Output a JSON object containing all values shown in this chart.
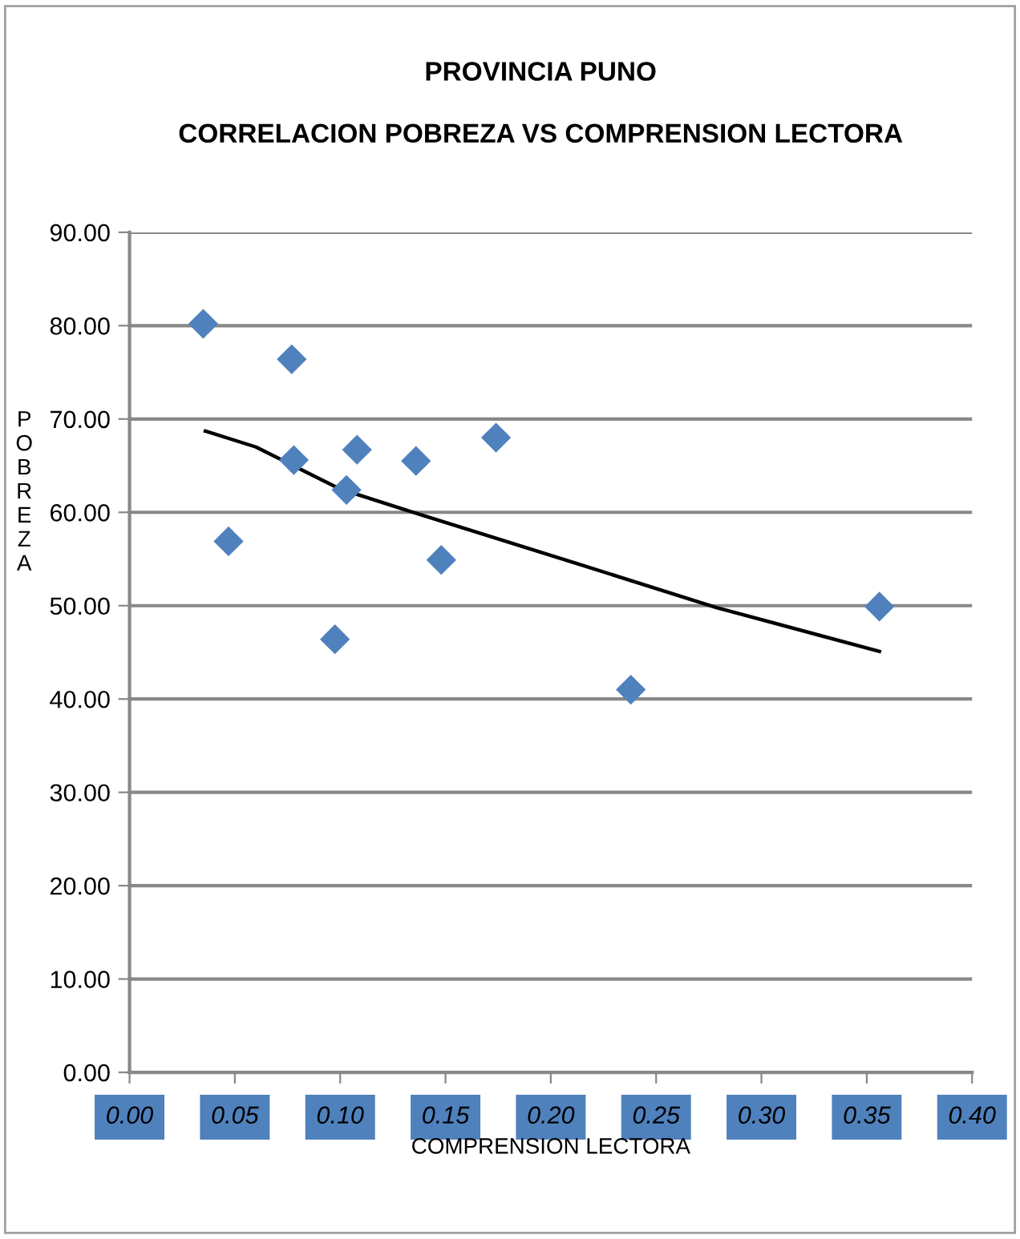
{
  "chart_data": {
    "type": "scatter",
    "title": "PROVINCIA PUNO",
    "subtitle": "CORRELACION POBREZA VS COMPRENSION LECTORA",
    "xlabel": "COMPRENSION LECTORA",
    "ylabel": "POBREZA",
    "xlim": [
      0,
      0.4
    ],
    "xticks": [
      {
        "value": 0,
        "label": "0.00"
      },
      {
        "value": 0.05,
        "label": "0.05"
      },
      {
        "value": 0.1,
        "label": "0.10"
      },
      {
        "value": 0.15,
        "label": "0.15"
      },
      {
        "value": 0.2,
        "label": "0.20"
      },
      {
        "value": 0.25,
        "label": "0.25"
      },
      {
        "value": 0.3,
        "label": "0.30"
      },
      {
        "value": 0.35,
        "label": "0.35"
      },
      {
        "value": 0.4,
        "label": "0.40"
      }
    ],
    "ylim": [
      0,
      90
    ],
    "yticks": [
      {
        "value": 0,
        "label": "0.00"
      },
      {
        "value": 10,
        "label": "10.00"
      },
      {
        "value": 20,
        "label": "20.00"
      },
      {
        "value": 30,
        "label": "30.00"
      },
      {
        "value": 40,
        "label": "40.00"
      },
      {
        "value": 50,
        "label": "50.00"
      },
      {
        "value": 60,
        "label": "60.00"
      },
      {
        "value": 70,
        "label": "70.00"
      },
      {
        "value": 80,
        "label": "80.00"
      },
      {
        "value": 90,
        "label": "90.00"
      }
    ],
    "grid": "y",
    "legend": false,
    "series": [
      {
        "color": "#4f81bd",
        "marker": "diamond",
        "x": [
          0.035,
          0.047,
          0.077,
          0.078,
          0.103,
          0.108,
          0.0975,
          0.136,
          0.148,
          0.174,
          0.238,
          0.356
        ],
        "values": [
          80.2,
          56.9,
          76.4,
          65.6,
          62.4,
          66.7,
          46.4,
          65.5,
          54.9,
          68.0,
          41.0,
          49.9
        ]
      },
      {
        "type": "line",
        "color": "#000000",
        "marker": "none",
        "line_style": "solid",
        "x": [
          0.036,
          0.06,
          0.1,
          0.136,
          0.2126,
          0.2786,
          0.356
        ],
        "values": [
          68.7,
          67.0,
          62.5,
          59.9,
          54.5,
          49.8,
          45.1
        ]
      }
    ]
  }
}
